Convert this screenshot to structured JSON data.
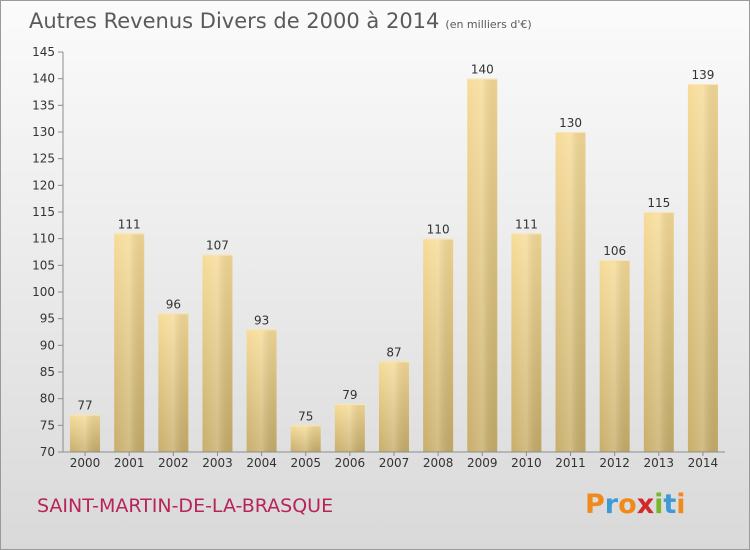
{
  "chart_data": {
    "type": "bar",
    "title": "Autres Revenus Divers de 2000 à 2014",
    "subtitle": "(en milliers d'€)",
    "categories": [
      "2000",
      "2001",
      "2002",
      "2003",
      "2004",
      "2005",
      "2006",
      "2007",
      "2008",
      "2009",
      "2010",
      "2011",
      "2012",
      "2013",
      "2014"
    ],
    "values": [
      77,
      111,
      96,
      107,
      93,
      75,
      79,
      87,
      110,
      140,
      111,
      130,
      106,
      115,
      139
    ],
    "ylim": [
      70,
      145
    ],
    "yticks": [
      70,
      75,
      80,
      85,
      90,
      95,
      100,
      105,
      110,
      115,
      120,
      125,
      130,
      135,
      140,
      145
    ],
    "grid": false,
    "bar_color": "#e8cd85"
  },
  "footer": {
    "commune": "SAINT-MARTIN-DE-LA-BRASQUE",
    "logo": "Proxiti"
  },
  "colors": {
    "commune": "#b8235a",
    "logo_letters": [
      "#f08a1c",
      "#3c9ad6",
      "#f08a1c",
      "#d2292c",
      "#7bb62f",
      "#3c9ad6",
      "#f08a1c"
    ]
  }
}
